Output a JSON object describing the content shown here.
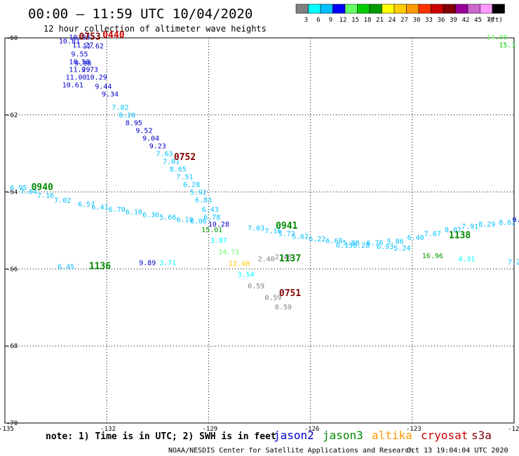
{
  "header": {
    "title": "00:00 – 11:59 UTC 10/04/2020",
    "subtitle": "12 hour collection of altimeter wave heights"
  },
  "colorbar": {
    "labels": [
      "3",
      "6",
      "9",
      "12",
      "15",
      "18",
      "21",
      "24",
      "27",
      "30",
      "33",
      "36",
      "39",
      "42",
      "45",
      "70",
      "(ft)"
    ],
    "colors": [
      "#808080",
      "#00ffff",
      "#00bfff",
      "#0000ff",
      "#66ff66",
      "#00cc00",
      "#009900",
      "#ffff00",
      "#ffcc00",
      "#ff9900",
      "#ff3300",
      "#cc0000",
      "#800000",
      "#990099",
      "#cc66cc",
      "#ff99ff",
      "#000000"
    ]
  },
  "footer": {
    "note": "note: 1) Time is in UTC; 2) SWH is in feet",
    "missions": [
      {
        "name": "jason2",
        "color": "#0000cc"
      },
      {
        "name": "jason3",
        "color": "#008800"
      },
      {
        "name": "altika",
        "color": "#ff9900"
      },
      {
        "name": "cryosat",
        "color": "#cc0000"
      },
      {
        "name": "s3a",
        "color": "#800000"
      }
    ],
    "credit": "NOAA/NESDIS Center for Satellite Applications and Research",
    "timestamp": "Oct 13 19:04:04 UTC 2020"
  },
  "chart_data": {
    "type": "scatter",
    "title": "00:00 – 11:59 UTC 10/04/2020",
    "subtitle": "12 hour collection of altimeter wave heights",
    "xlim": [
      -135,
      -120
    ],
    "ylim": [
      -70,
      -60
    ],
    "x_ticks": [
      "-135",
      "-132",
      "-129",
      "-126",
      "-123",
      "-120"
    ],
    "y_ticks": [
      "-60",
      "-62",
      "-64",
      "-66",
      "-68",
      "-70"
    ],
    "grid": "dotted",
    "points": [
      {
        "lon": -133.1,
        "lat": -60.15,
        "v": "10.81",
        "c": "#0000cc"
      },
      {
        "lon": -132.8,
        "lat": -60.05,
        "v": "10.93",
        "c": "#0000cc"
      },
      {
        "lon": -132.7,
        "lat": -60.25,
        "v": "11.27",
        "c": "#0000cc"
      },
      {
        "lon": -132.4,
        "lat": -60.27,
        "v": "11.62",
        "c": "#0000cc"
      },
      {
        "lon": -132.8,
        "lat": -60.48,
        "v": "9.55",
        "c": "#0000cc"
      },
      {
        "lon": -132.8,
        "lat": -60.68,
        "v": "10.58",
        "c": "#0000cc"
      },
      {
        "lon": -132.7,
        "lat": -60.72,
        "v": "9.98",
        "c": "#0000cc"
      },
      {
        "lon": -132.8,
        "lat": -60.88,
        "v": "11.29",
        "c": "#0000cc"
      },
      {
        "lon": -132.5,
        "lat": -60.88,
        "v": "9.73",
        "c": "#0000cc"
      },
      {
        "lon": -132.9,
        "lat": -61.08,
        "v": "11.00",
        "c": "#0000cc"
      },
      {
        "lon": -132.3,
        "lat": -61.08,
        "v": "10.29",
        "c": "#0000cc"
      },
      {
        "lon": -133.0,
        "lat": -61.28,
        "v": "10.61",
        "c": "#0000cc"
      },
      {
        "lon": -132.1,
        "lat": -61.32,
        "v": "9.44",
        "c": "#0000cc"
      },
      {
        "lon": -131.9,
        "lat": -61.52,
        "v": "9.34",
        "c": "#0000cc"
      },
      {
        "lon": -131.6,
        "lat": -61.87,
        "v": "7.82",
        "c": "#00bfff"
      },
      {
        "lon": -131.4,
        "lat": -62.07,
        "v": "8.20",
        "c": "#00bfff"
      },
      {
        "lon": -131.2,
        "lat": -62.27,
        "v": "8.95",
        "c": "#0000cc"
      },
      {
        "lon": -130.9,
        "lat": -62.47,
        "v": "9.52",
        "c": "#0000cc"
      },
      {
        "lon": -130.7,
        "lat": -62.67,
        "v": "9.04",
        "c": "#0000cc"
      },
      {
        "lon": -130.5,
        "lat": -62.87,
        "v": "9.23",
        "c": "#0000cc"
      },
      {
        "lon": -130.3,
        "lat": -63.07,
        "v": "7.63",
        "c": "#00bfff"
      },
      {
        "lon": -130.1,
        "lat": -63.27,
        "v": "7.01",
        "c": "#00bfff"
      },
      {
        "lon": -129.9,
        "lat": -63.47,
        "v": "8.65",
        "c": "#00bfff"
      },
      {
        "lon": -129.7,
        "lat": -63.67,
        "v": "7.51",
        "c": "#00bfff"
      },
      {
        "lon": -129.5,
        "lat": -63.87,
        "v": "6.28",
        "c": "#00bfff"
      },
      {
        "lon": -129.3,
        "lat": -64.07,
        "v": "5.92",
        "c": "#00bfff"
      },
      {
        "lon": -129.15,
        "lat": -64.27,
        "v": "6.83",
        "c": "#00bfff"
      },
      {
        "lon": -128.95,
        "lat": -64.52,
        "v": "6.43",
        "c": "#00bfff"
      },
      {
        "lon": -128.9,
        "lat": -64.72,
        "v": "6.78",
        "c": "#00bfff"
      },
      {
        "lon": -134.6,
        "lat": -63.95,
        "v": "6.95",
        "c": "#00bfff"
      },
      {
        "lon": -134.3,
        "lat": -64.05,
        "v": "7.04",
        "c": "#00bfff"
      },
      {
        "lon": -133.8,
        "lat": -64.15,
        "v": "7.16",
        "c": "#00bfff"
      },
      {
        "lon": -133.3,
        "lat": -64.28,
        "v": "7.02",
        "c": "#00bfff"
      },
      {
        "lon": -132.6,
        "lat": -64.38,
        "v": "6.57",
        "c": "#00bfff"
      },
      {
        "lon": -132.2,
        "lat": -64.45,
        "v": "6.41",
        "c": "#00bfff"
      },
      {
        "lon": -131.7,
        "lat": -64.52,
        "v": "6.70",
        "c": "#00bfff"
      },
      {
        "lon": -131.2,
        "lat": -64.58,
        "v": "6.10",
        "c": "#00bfff"
      },
      {
        "lon": -130.7,
        "lat": -64.65,
        "v": "6.36",
        "c": "#00bfff"
      },
      {
        "lon": -130.2,
        "lat": -64.72,
        "v": "5.66",
        "c": "#00bfff"
      },
      {
        "lon": -129.7,
        "lat": -64.78,
        "v": "6.19",
        "c": "#00bfff"
      },
      {
        "lon": -129.3,
        "lat": -64.82,
        "v": "6.06",
        "c": "#00bfff"
      },
      {
        "lon": -128.7,
        "lat": -64.9,
        "v": "10.28",
        "c": "#0000cc"
      },
      {
        "lon": -128.9,
        "lat": -65.05,
        "v": "15.01",
        "c": "#009900"
      },
      {
        "lon": -128.7,
        "lat": -65.32,
        "v": "3.87",
        "c": "#00ffff"
      },
      {
        "lon": -128.4,
        "lat": -65.62,
        "v": "14.71",
        "c": "#66ff66"
      },
      {
        "lon": -128.1,
        "lat": -65.92,
        "v": "12.40",
        "c": "#ffcc00"
      },
      {
        "lon": -127.9,
        "lat": -66.2,
        "v": "3.54",
        "c": "#00ffff"
      },
      {
        "lon": -127.6,
        "lat": -66.5,
        "v": "0.59",
        "c": "#808080"
      },
      {
        "lon": -127.1,
        "lat": -66.8,
        "v": "0.59",
        "c": "#808080"
      },
      {
        "lon": -126.8,
        "lat": -67.05,
        "v": "0.59",
        "c": "#808080"
      },
      {
        "lon": -127.3,
        "lat": -65.8,
        "v": "2.40",
        "c": "#808080"
      },
      {
        "lon": -126.8,
        "lat": -65.75,
        "v": "2.48",
        "c": "#808080"
      },
      {
        "lon": -127.6,
        "lat": -65.0,
        "v": "7.03",
        "c": "#00bfff"
      },
      {
        "lon": -127.1,
        "lat": -65.07,
        "v": "7.16",
        "c": "#00bfff"
      },
      {
        "lon": -126.7,
        "lat": -65.15,
        "v": "5.72",
        "c": "#00bfff"
      },
      {
        "lon": -126.3,
        "lat": -65.22,
        "v": "5.62",
        "c": "#00bfff"
      },
      {
        "lon": -125.8,
        "lat": -65.28,
        "v": "6.22",
        "c": "#00bfff"
      },
      {
        "lon": -125.3,
        "lat": -65.33,
        "v": "6.68",
        "c": "#00bfff"
      },
      {
        "lon": -125.0,
        "lat": -65.45,
        "v": "6.13",
        "c": "#00bfff"
      },
      {
        "lon": -124.8,
        "lat": -65.38,
        "v": "5.88",
        "c": "#00bfff"
      },
      {
        "lon": -124.5,
        "lat": -65.45,
        "v": "6.28",
        "c": "#00bfff"
      },
      {
        "lon": -124.1,
        "lat": -65.38,
        "v": "6.76",
        "c": "#00bfff"
      },
      {
        "lon": -123.8,
        "lat": -65.48,
        "v": "6.93",
        "c": "#00bfff"
      },
      {
        "lon": -123.5,
        "lat": -65.35,
        "v": "5.86",
        "c": "#00bfff"
      },
      {
        "lon": -123.3,
        "lat": -65.52,
        "v": "5.24",
        "c": "#00bfff"
      },
      {
        "lon": -122.9,
        "lat": -65.25,
        "v": "6.40",
        "c": "#00bfff"
      },
      {
        "lon": -122.4,
        "lat": -65.15,
        "v": "7.67",
        "c": "#00bfff"
      },
      {
        "lon": -121.8,
        "lat": -65.05,
        "v": "8.07",
        "c": "#00bfff"
      },
      {
        "lon": -121.3,
        "lat": -64.95,
        "v": "7.91",
        "c": "#00bfff"
      },
      {
        "lon": -120.8,
        "lat": -64.9,
        "v": "8.29",
        "c": "#00bfff"
      },
      {
        "lon": -120.2,
        "lat": -64.85,
        "v": "8.62",
        "c": "#00bfff"
      },
      {
        "lon": -119.8,
        "lat": -64.78,
        "v": "9.19",
        "c": "#0000cc"
      },
      {
        "lon": -122.4,
        "lat": -65.72,
        "v": "16.96",
        "c": "#009900"
      },
      {
        "lon": -121.4,
        "lat": -65.8,
        "v": "4.31",
        "c": "#00ffff"
      },
      {
        "lon": -120.0,
        "lat": -65.88,
        "v": "7.2",
        "c": "#00bfff"
      },
      {
        "lon": -120.5,
        "lat": -60.05,
        "v": "14.05",
        "c": "#66ff66"
      },
      {
        "lon": -120.2,
        "lat": -60.25,
        "v": "15.1",
        "c": "#00cc00"
      },
      {
        "lon": -130.8,
        "lat": -65.9,
        "v": "9.89",
        "c": "#0000cc"
      },
      {
        "lon": -130.2,
        "lat": -65.9,
        "v": "3.71",
        "c": "#00ffff"
      },
      {
        "lon": -133.2,
        "lat": -66.0,
        "v": "6.45",
        "c": "#00bfff"
      }
    ],
    "times": [
      {
        "lon": -132.5,
        "lat": -60.05,
        "v": "0753",
        "c": "#800000"
      },
      {
        "lon": -131.8,
        "lat": -60.0,
        "v": "0440",
        "c": "#cc0000"
      },
      {
        "lon": -129.7,
        "lat": -63.17,
        "v": "0752",
        "c": "#800000"
      },
      {
        "lon": -133.9,
        "lat": -63.95,
        "v": "0940",
        "c": "#008800"
      },
      {
        "lon": -126.7,
        "lat": -64.95,
        "v": "0941",
        "c": "#008800"
      },
      {
        "lon": -126.6,
        "lat": -65.8,
        "v": "1137",
        "c": "#008800"
      },
      {
        "lon": -126.6,
        "lat": -66.7,
        "v": "0751",
        "c": "#800000"
      },
      {
        "lon": -121.6,
        "lat": -65.2,
        "v": "1138",
        "c": "#008800"
      },
      {
        "lon": -132.2,
        "lat": -66.0,
        "v": "1136",
        "c": "#008800"
      }
    ]
  }
}
